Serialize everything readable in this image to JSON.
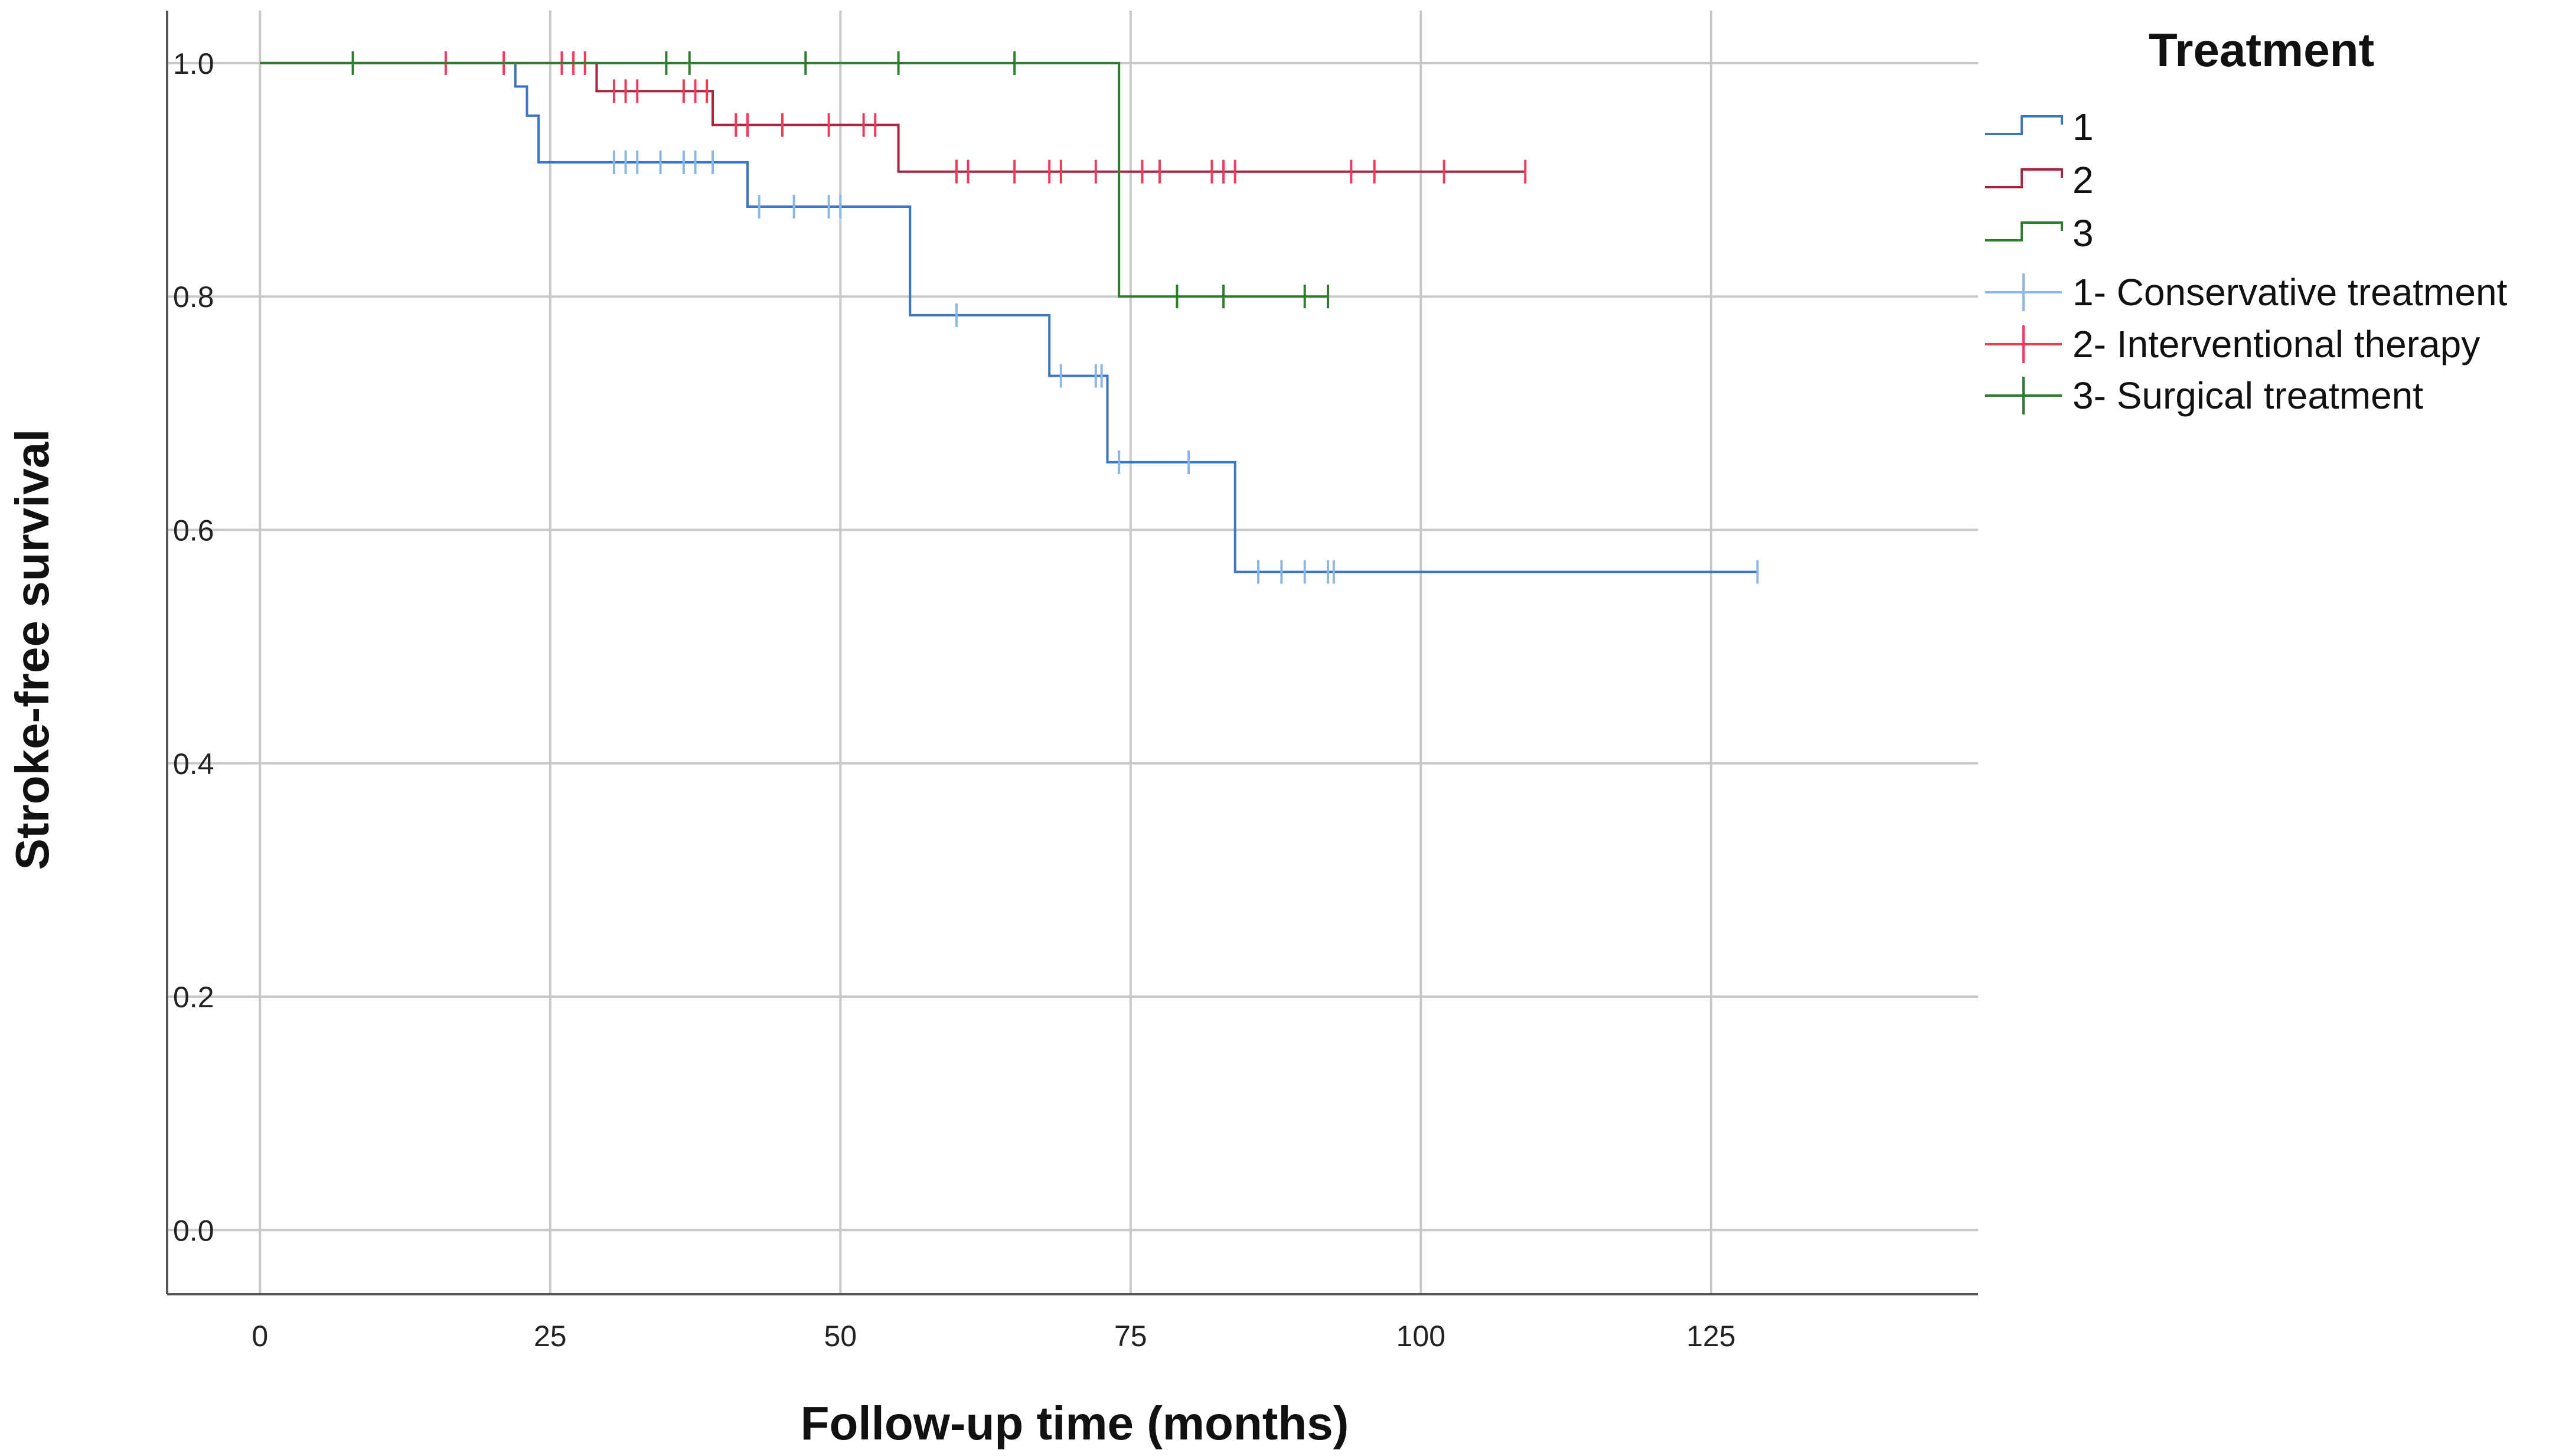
{
  "chart_data": {
    "type": "line",
    "subtype": "kaplan-meier step",
    "xlabel": "Follow-up time (months)",
    "ylabel": "Stroke-free survival",
    "xlim": [
      -8,
      148
    ],
    "ylim": [
      -0.055,
      1.045
    ],
    "xticks": [
      0,
      25,
      50,
      75,
      100,
      125
    ],
    "yticks": [
      0.0,
      0.2,
      0.4,
      0.6,
      0.8,
      1.0
    ],
    "xtick_labels": [
      "0",
      "25",
      "50",
      "75",
      "100",
      "125"
    ],
    "ytick_labels": [
      "0.0",
      "0.2",
      "0.4",
      "0.6",
      "0.8",
      "1.0"
    ],
    "grid": true,
    "legend": {
      "title": "Treatment",
      "placement": "right",
      "line_entries": [
        "1",
        "2",
        "3"
      ],
      "censor_entries": [
        "1- Conservative treatment",
        "2- Interventional therapy",
        "3- Surgical treatment"
      ]
    },
    "series": [
      {
        "name": "1",
        "censor_name": "1- Conservative treatment",
        "color": "#3a75c4",
        "censor_color": "#8cb6e6",
        "steps": [
          [
            0,
            1.0
          ],
          [
            22,
            0.98
          ],
          [
            23,
            0.955
          ],
          [
            24,
            0.915
          ],
          [
            42,
            0.877
          ],
          [
            56,
            0.784
          ],
          [
            68,
            0.732
          ],
          [
            73,
            0.658
          ],
          [
            84,
            0.564
          ],
          [
            129,
            0.564
          ]
        ],
        "censored": [
          [
            30.5,
            0.915
          ],
          [
            31.5,
            0.915
          ],
          [
            32.5,
            0.915
          ],
          [
            34.5,
            0.915
          ],
          [
            36.5,
            0.915
          ],
          [
            37.5,
            0.915
          ],
          [
            39,
            0.915
          ],
          [
            43,
            0.877
          ],
          [
            46,
            0.877
          ],
          [
            49,
            0.877
          ],
          [
            50,
            0.877
          ],
          [
            60,
            0.784
          ],
          [
            69,
            0.732
          ],
          [
            72,
            0.732
          ],
          [
            72.5,
            0.732
          ],
          [
            74,
            0.658
          ],
          [
            80,
            0.658
          ],
          [
            86,
            0.564
          ],
          [
            88,
            0.564
          ],
          [
            90,
            0.564
          ],
          [
            92,
            0.564
          ],
          [
            92.5,
            0.564
          ],
          [
            129,
            0.564
          ]
        ]
      },
      {
        "name": "2",
        "censor_name": "2- Interventional therapy",
        "color": "#a8233e",
        "censor_color": "#ef3a5a",
        "steps": [
          [
            0,
            1.0
          ],
          [
            29,
            0.976
          ],
          [
            39,
            0.947
          ],
          [
            55,
            0.907
          ],
          [
            109,
            0.907
          ]
        ],
        "censored": [
          [
            16,
            1.0
          ],
          [
            21,
            1.0
          ],
          [
            26,
            1.0
          ],
          [
            27,
            1.0
          ],
          [
            28,
            1.0
          ],
          [
            30.5,
            0.976
          ],
          [
            31.5,
            0.976
          ],
          [
            32.5,
            0.976
          ],
          [
            36.5,
            0.976
          ],
          [
            37.5,
            0.976
          ],
          [
            38.5,
            0.976
          ],
          [
            41,
            0.947
          ],
          [
            42,
            0.947
          ],
          [
            45,
            0.947
          ],
          [
            49,
            0.947
          ],
          [
            52,
            0.947
          ],
          [
            53,
            0.947
          ],
          [
            60,
            0.907
          ],
          [
            61,
            0.907
          ],
          [
            65,
            0.907
          ],
          [
            68,
            0.907
          ],
          [
            69,
            0.907
          ],
          [
            72,
            0.907
          ],
          [
            76,
            0.907
          ],
          [
            77.5,
            0.907
          ],
          [
            82,
            0.907
          ],
          [
            83,
            0.907
          ],
          [
            84,
            0.907
          ],
          [
            94,
            0.907
          ],
          [
            96,
            0.907
          ],
          [
            102,
            0.907
          ],
          [
            109,
            0.907
          ]
        ]
      },
      {
        "name": "3",
        "censor_name": "3- Surgical treatment",
        "color": "#2e7d2e",
        "censor_color": "#2e7d2e",
        "steps": [
          [
            0,
            1.0
          ],
          [
            74,
            0.8
          ],
          [
            92,
            0.8
          ]
        ],
        "censored": [
          [
            8,
            1.0
          ],
          [
            35,
            1.0
          ],
          [
            37,
            1.0
          ],
          [
            47,
            1.0
          ],
          [
            55,
            1.0
          ],
          [
            65,
            1.0
          ],
          [
            79,
            0.8
          ],
          [
            83,
            0.8
          ],
          [
            90,
            0.8
          ],
          [
            92,
            0.8
          ]
        ]
      }
    ]
  }
}
